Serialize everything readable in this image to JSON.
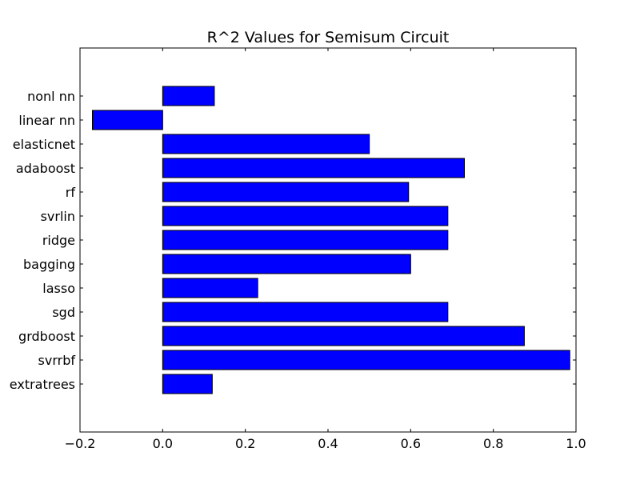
{
  "chart_data": {
    "type": "bar",
    "orientation": "horizontal",
    "title": "R^2 Values for Semisum Circuit",
    "xlabel": "",
    "ylabel": "",
    "xlim": [
      -0.2,
      1.0
    ],
    "xticks": [
      "−0.2",
      "0.0",
      "0.2",
      "0.4",
      "0.6",
      "0.8",
      "1.0"
    ],
    "categories": [
      "extratrees",
      "svrrbf",
      "grdboost",
      "sgd",
      "lasso",
      "bagging",
      "ridge",
      "svrlin",
      "rf",
      "adaboost",
      "elasticnet",
      "linear nn",
      "nonl nn"
    ],
    "values": [
      0.12,
      0.985,
      0.875,
      0.69,
      0.23,
      0.6,
      0.69,
      0.69,
      0.595,
      0.73,
      0.5,
      -0.17,
      0.125
    ],
    "grid": false,
    "legend": "none",
    "colors": {
      "bar": "#0000ff",
      "edge": "#000000"
    }
  }
}
